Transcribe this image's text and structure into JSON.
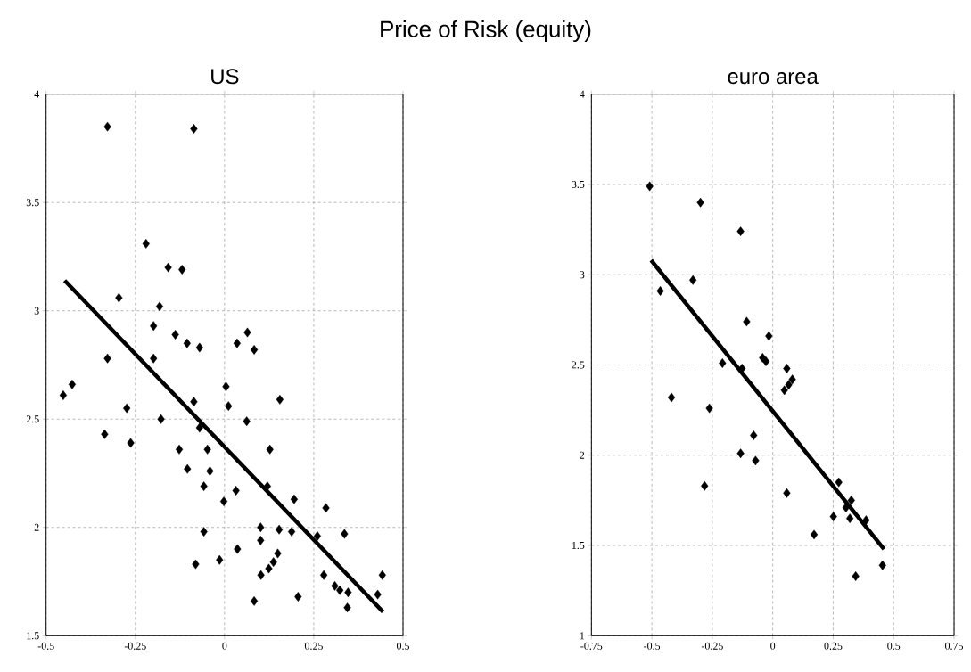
{
  "chart_data": [
    {
      "type": "scatter",
      "title": "Price of Risk (equity)",
      "subtitle": "US",
      "xlim": [
        -0.5,
        0.5
      ],
      "ylim": [
        1.5,
        4
      ],
      "xticks": [
        -0.5,
        -0.25,
        0,
        0.25,
        0.5
      ],
      "yticks": [
        1.5,
        2,
        2.5,
        3,
        3.5,
        4
      ],
      "grid": true,
      "series": [
        {
          "marker": "diamond",
          "color": "#000000",
          "x": [
            -0.328,
            -0.086,
            -0.22,
            -0.158,
            -0.119,
            -0.296,
            -0.182,
            -0.199,
            -0.138,
            -0.105,
            -0.07,
            0.035,
            0.064,
            0.083,
            -0.328,
            -0.199,
            -0.452,
            -0.427,
            -0.274,
            -0.336,
            -0.263,
            -0.178,
            -0.086,
            -0.07,
            0.004,
            0.011,
            0.062,
            0.155,
            -0.127,
            -0.048,
            -0.104,
            -0.041,
            -0.058,
            -0.002,
            0.032,
            0.127,
            0.12,
            0.195,
            0.284,
            -0.058,
            0.101,
            0.101,
            0.153,
            0.188,
            0.26,
            0.336,
            0.036,
            -0.014,
            -0.081,
            0.149,
            0.137,
            0.124,
            0.102,
            0.278,
            0.309,
            0.323,
            0.346,
            0.344,
            0.206,
            0.083,
            0.429,
            0.442
          ],
          "values": [
            3.85,
            3.84,
            3.31,
            3.2,
            3.19,
            3.06,
            3.02,
            2.93,
            2.89,
            2.85,
            2.83,
            2.85,
            2.9,
            2.82,
            2.78,
            2.78,
            2.61,
            2.66,
            2.55,
            2.43,
            2.39,
            2.5,
            2.58,
            2.46,
            2.65,
            2.56,
            2.49,
            2.59,
            2.36,
            2.36,
            2.27,
            2.26,
            2.19,
            2.12,
            2.17,
            2.36,
            2.19,
            2.13,
            2.09,
            1.98,
            2.0,
            1.94,
            1.99,
            1.98,
            1.96,
            1.97,
            1.9,
            1.85,
            1.83,
            1.88,
            1.84,
            1.81,
            1.78,
            1.78,
            1.73,
            1.71,
            1.7,
            1.63,
            1.68,
            1.66,
            1.69,
            1.78
          ]
        },
        {
          "type": "line",
          "marker": "none",
          "color": "#000000",
          "x": [
            -0.448,
            0.444
          ],
          "values": [
            3.14,
            1.61
          ]
        }
      ]
    },
    {
      "type": "scatter",
      "subtitle": "euro area",
      "xlim": [
        -0.75,
        0.75
      ],
      "ylim": [
        1,
        4
      ],
      "xticks": [
        -0.75,
        -0.5,
        -0.25,
        0,
        0.25,
        0.5,
        0.75
      ],
      "yticks": [
        1,
        1.5,
        2,
        2.5,
        3,
        3.5,
        4
      ],
      "grid": true,
      "series": [
        {
          "marker": "diamond",
          "color": "#000000",
          "x": [
            -0.509,
            -0.299,
            -0.133,
            -0.33,
            -0.465,
            -0.108,
            -0.016,
            -0.042,
            -0.028,
            -0.208,
            -0.127,
            0.058,
            0.081,
            0.066,
            0.048,
            -0.419,
            -0.262,
            -0.079,
            -0.133,
            -0.071,
            -0.282,
            0.058,
            0.273,
            0.325,
            0.303,
            0.319,
            0.386,
            0.251,
            0.171,
            0.454,
            0.343
          ],
          "values": [
            3.49,
            3.4,
            3.24,
            2.97,
            2.91,
            2.74,
            2.66,
            2.54,
            2.52,
            2.51,
            2.48,
            2.48,
            2.42,
            2.39,
            2.36,
            2.32,
            2.26,
            2.11,
            2.01,
            1.97,
            1.83,
            1.79,
            1.85,
            1.75,
            1.71,
            1.65,
            1.64,
            1.66,
            1.56,
            1.39,
            1.33
          ]
        },
        {
          "type": "line",
          "marker": "none",
          "color": "#000000",
          "x": [
            -0.503,
            0.46
          ],
          "values": [
            3.08,
            1.48
          ]
        }
      ]
    }
  ]
}
